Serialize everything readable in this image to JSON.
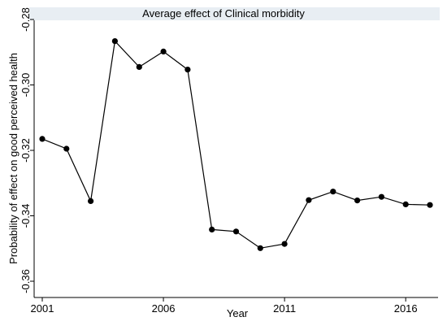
{
  "chart_data": {
    "type": "line",
    "title": "Average effect of Clinical morbidity",
    "xlabel": "Year",
    "ylabel": "Probability of effect on good perceived health",
    "xlim": [
      2001,
      2017
    ],
    "ylim": [
      -0.36,
      -0.28
    ],
    "xticks": [
      2001,
      2006,
      2011,
      2016
    ],
    "yticks": [
      -0.28,
      -0.3,
      -0.32,
      -0.34,
      -0.36
    ],
    "ytick_labels": [
      "-0.28",
      "-0.30",
      "-0.32",
      "-0.34",
      "-0.36"
    ],
    "grid": false,
    "legend": "none",
    "colors": {
      "title_band": "#e8eef3",
      "line": "#000000",
      "marker": "#000000"
    },
    "series": [
      {
        "x": [
          2001,
          2002,
          2003,
          2004,
          2005,
          2006,
          2007,
          2008,
          2009,
          2010,
          2011,
          2012,
          2013,
          2014,
          2015,
          2016,
          2017
        ],
        "values": [
          -0.3165,
          -0.3195,
          -0.3355,
          -0.2866,
          -0.2945,
          -0.2898,
          -0.2953,
          -0.3442,
          -0.3448,
          -0.3499,
          -0.3486,
          -0.3352,
          -0.3326,
          -0.3353,
          -0.3342,
          -0.3365,
          -0.3367
        ]
      }
    ]
  }
}
